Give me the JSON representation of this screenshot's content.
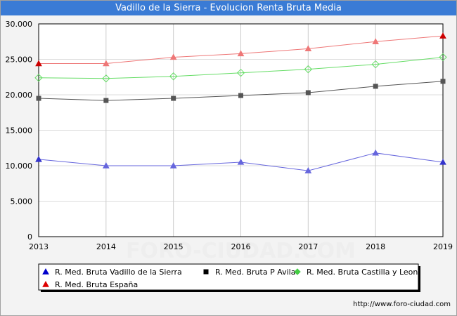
{
  "title": "Vadillo de la Sierra - Evolucion Renta Bruta Media",
  "footer": "http://www.foro-ciudad.com",
  "watermark": "FORO-CIUDAD.COM",
  "chart_data": {
    "type": "line",
    "x": [
      "2013",
      "2014",
      "2015",
      "2016",
      "2017",
      "2018",
      "2019"
    ],
    "ylim": [
      0,
      30000
    ],
    "yticks": [
      0,
      5000,
      10000,
      15000,
      20000,
      25000,
      30000
    ],
    "ytick_labels": [
      "0",
      "5.000",
      "10.000",
      "15.000",
      "20.000",
      "25.000",
      "30.000"
    ],
    "grid": true,
    "legend_position": "bottom",
    "series": [
      {
        "name": "R. Med. Bruta Vadillo de la Sierra",
        "color": "#6666dd",
        "marker": "triangle",
        "values": [
          10900,
          10000,
          10000,
          10500,
          9300,
          11800,
          10500
        ]
      },
      {
        "name": "R. Med. Bruta P Avila",
        "color": "#555555",
        "marker": "square",
        "values": [
          19500,
          19200,
          19500,
          19900,
          20300,
          21200,
          21900
        ]
      },
      {
        "name": "R. Med. Bruta Castilla y Leon",
        "color": "#66dd66",
        "marker": "diamond",
        "values": [
          22400,
          22300,
          22600,
          23100,
          23600,
          24300,
          25300
        ]
      },
      {
        "name": "R. Med. Bruta España",
        "color": "#ee7777",
        "marker": "triangle",
        "values": [
          24400,
          24400,
          25300,
          25800,
          26500,
          27500,
          28300
        ]
      }
    ]
  }
}
